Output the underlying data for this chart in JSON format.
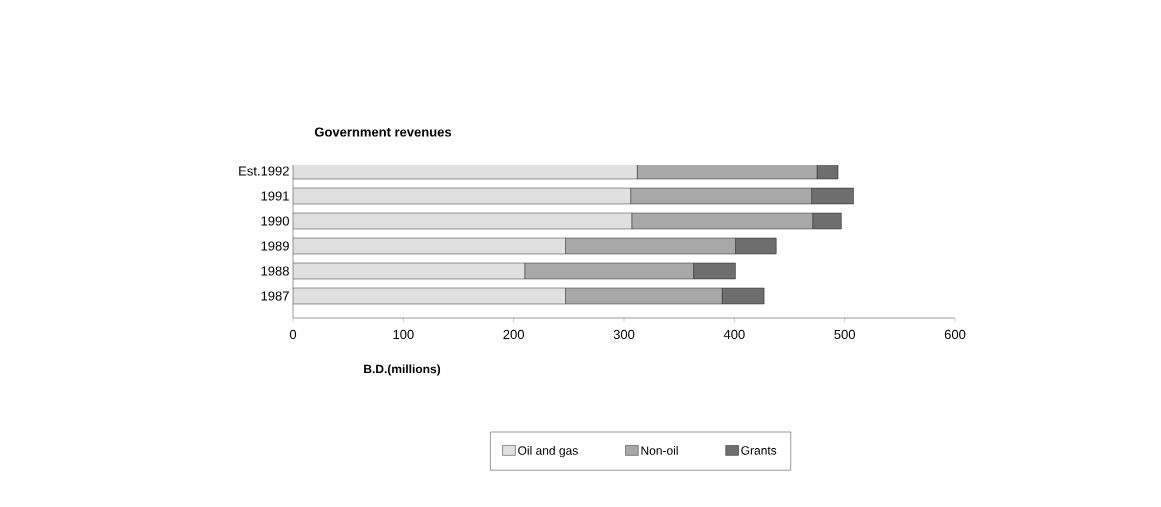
{
  "chart_data": {
    "type": "bar",
    "orientation": "horizontal",
    "stacked": true,
    "title": "Government revenues",
    "xlabel": "B.D.(millions)",
    "categories": [
      "Est.1992",
      "1991",
      "1990",
      "1989",
      "1988",
      "1987"
    ],
    "series": [
      {
        "name": "Oil and gas",
        "color": "#e0e0e0",
        "values": [
          312,
          306,
          307,
          247,
          210,
          247
        ]
      },
      {
        "name": "Non-oil",
        "color": "#a8a8a8",
        "values": [
          163,
          164,
          164,
          154,
          153,
          142
        ]
      },
      {
        "name": "Grants",
        "color": "#6e6e6e",
        "values": [
          19,
          38,
          26,
          37,
          38,
          38
        ]
      }
    ],
    "xlim": [
      0,
      600
    ],
    "xticks": [
      0,
      100,
      200,
      300,
      400,
      500,
      600
    ],
    "grid": false,
    "legend": "bottom"
  }
}
